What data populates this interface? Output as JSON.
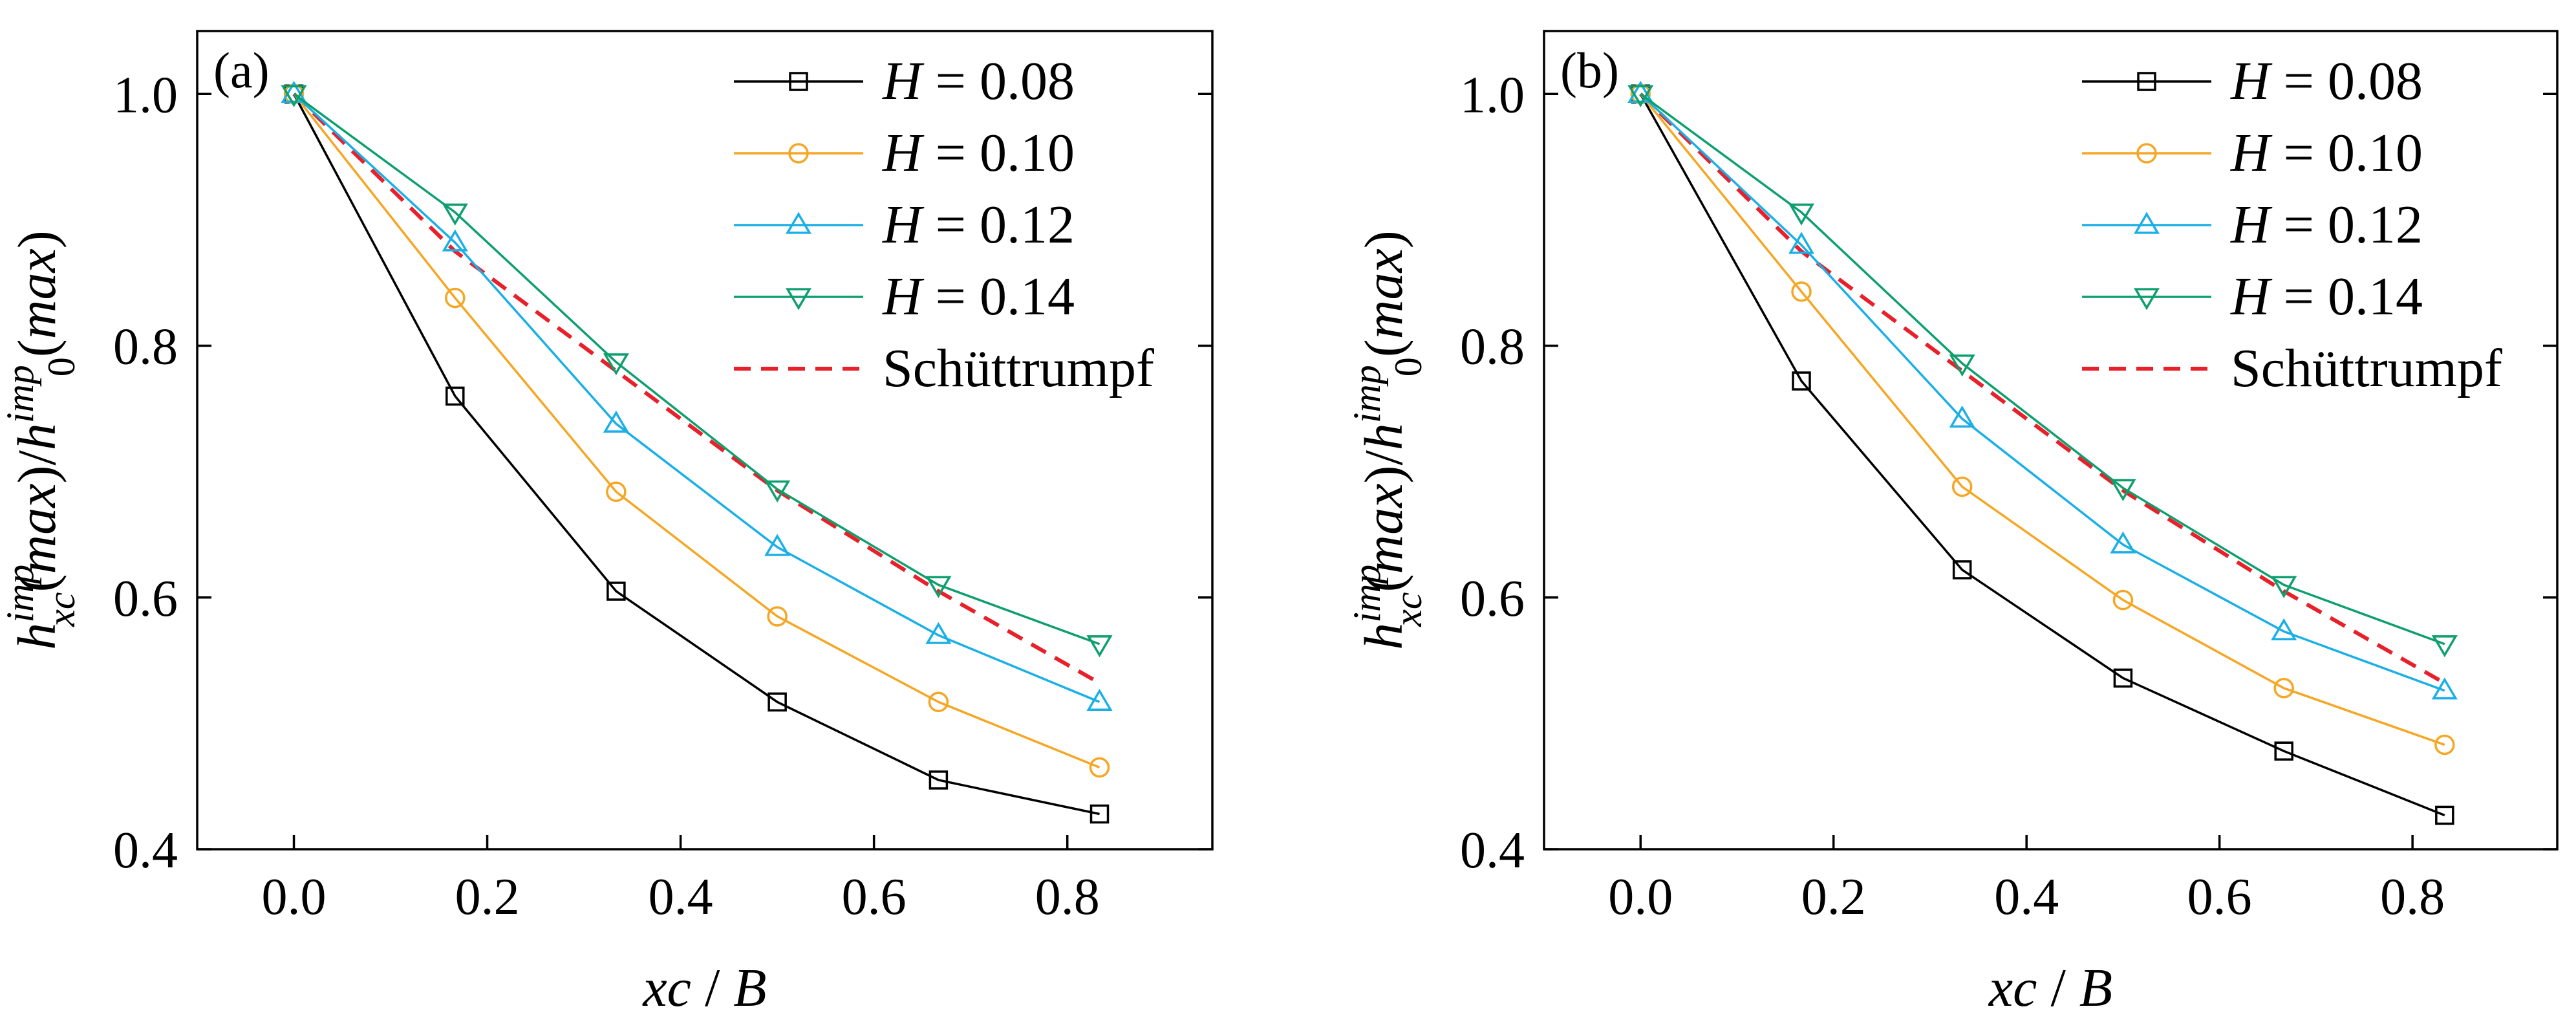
{
  "chart_data": [
    {
      "type": "line",
      "panel_label": "(a)",
      "xlabel": [
        "xc",
        " / ",
        "B"
      ],
      "ylabel": {
        "h": "h",
        "imp": "imp",
        "xc": "xc",
        "max_open": "(",
        "max": "max",
        "mid": ")/",
        "h0": "h",
        "imp2": "imp",
        "zero": "0",
        "open2": "(",
        "max2": "max",
        "close": ")"
      },
      "xlim": [
        -0.1,
        0.95
      ],
      "ylim": [
        0.4,
        1.05
      ],
      "xticks": [
        "0.0",
        "0.2",
        "0.4",
        "0.6",
        "0.8"
      ],
      "xtick_values": [
        0.0,
        0.2,
        0.4,
        0.6,
        0.8
      ],
      "yticks": [
        "0.4",
        "0.6",
        "0.8",
        "1.0"
      ],
      "ytick_values": [
        0.4,
        0.6,
        0.8,
        1.0
      ],
      "x": [
        0.0,
        0.1667,
        0.3333,
        0.5,
        0.6667,
        0.8333
      ],
      "series": [
        {
          "name": "H = 0.08",
          "sym": "H",
          "eq": " = 0.08",
          "color": "#000000",
          "marker": "square",
          "values": [
            1.0,
            0.76,
            0.605,
            0.517,
            0.455,
            0.428
          ]
        },
        {
          "name": "H = 0.10",
          "sym": "H",
          "eq": " = 0.10",
          "color": "#f5a623",
          "marker": "circle",
          "values": [
            1.0,
            0.838,
            0.684,
            0.585,
            0.517,
            0.465
          ]
        },
        {
          "name": "H = 0.12",
          "sym": "H",
          "eq": " = 0.12",
          "color": "#1aafe6",
          "marker": "triangle-up",
          "values": [
            1.0,
            0.882,
            0.738,
            0.64,
            0.57,
            0.517
          ]
        },
        {
          "name": "H = 0.14",
          "sym": "H",
          "eq": " = 0.14",
          "color": "#0e9f6e",
          "marker": "triangle-down",
          "values": [
            1.0,
            0.906,
            0.787,
            0.686,
            0.61,
            0.563
          ]
        }
      ],
      "reference": {
        "name": "Schüttrumpf",
        "color": "#e8202a",
        "style": "dashed",
        "values": [
          1.0,
          0.875,
          0.78,
          0.685,
          0.605,
          0.532
        ]
      }
    },
    {
      "type": "line",
      "panel_label": "(b)",
      "xlabel": [
        "xc",
        " / ",
        "B"
      ],
      "ylabel": {
        "h": "h",
        "imp": "imp",
        "xc": "xc",
        "max_open": "(",
        "max": "max",
        "mid": ")/",
        "h0": "h",
        "imp2": "imp",
        "zero": "0",
        "open2": "(",
        "max2": "max",
        "close": ")"
      },
      "xlim": [
        -0.1,
        0.95
      ],
      "ylim": [
        0.4,
        1.05
      ],
      "xticks": [
        "0.0",
        "0.2",
        "0.4",
        "0.6",
        "0.8"
      ],
      "xtick_values": [
        0.0,
        0.2,
        0.4,
        0.6,
        0.8
      ],
      "yticks": [
        "0.4",
        "0.6",
        "0.8",
        "1.0"
      ],
      "ytick_values": [
        0.4,
        0.6,
        0.8,
        1.0
      ],
      "x": [
        0.0,
        0.1667,
        0.3333,
        0.5,
        0.6667,
        0.8333
      ],
      "series": [
        {
          "name": "H = 0.08",
          "sym": "H",
          "eq": " = 0.08",
          "color": "#000000",
          "marker": "square",
          "values": [
            1.0,
            0.772,
            0.622,
            0.536,
            0.478,
            0.427
          ]
        },
        {
          "name": "H = 0.10",
          "sym": "H",
          "eq": " = 0.10",
          "color": "#f5a623",
          "marker": "circle",
          "values": [
            1.0,
            0.843,
            0.688,
            0.598,
            0.528,
            0.483
          ]
        },
        {
          "name": "H = 0.12",
          "sym": "H",
          "eq": " = 0.12",
          "color": "#1aafe6",
          "marker": "triangle-up",
          "values": [
            1.0,
            0.88,
            0.742,
            0.642,
            0.573,
            0.526
          ]
        },
        {
          "name": "H = 0.14",
          "sym": "H",
          "eq": " = 0.14",
          "color": "#0e9f6e",
          "marker": "triangle-down",
          "values": [
            1.0,
            0.906,
            0.786,
            0.687,
            0.61,
            0.563
          ]
        }
      ],
      "reference": {
        "name": "Schüttrumpf",
        "color": "#e8202a",
        "style": "dashed",
        "values": [
          1.0,
          0.875,
          0.78,
          0.685,
          0.605,
          0.532
        ]
      }
    }
  ]
}
